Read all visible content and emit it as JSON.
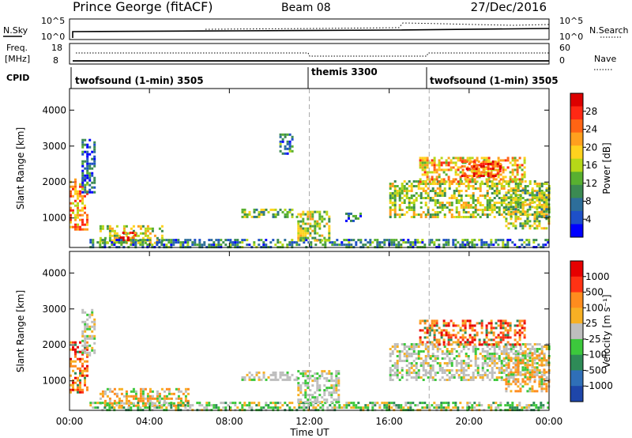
{
  "header": {
    "station": "Prince George (fitACF)",
    "beam": "Beam 08",
    "date": "27/Dec/2016"
  },
  "aux_panels": {
    "nsky_label": "N.Sky",
    "nsearch_label": "N.Search",
    "nsky_ticks": [
      "10^5",
      "10^0"
    ],
    "nsearch_ticks": [
      "10^5",
      "10^0"
    ],
    "freq_label_1": "Freq.",
    "freq_label_2": "[MHz]",
    "freq_ticks": [
      "18",
      "8"
    ],
    "nave_label": "Nave",
    "nave_ticks": [
      "60",
      "0"
    ],
    "cpid_label": "CPID",
    "cpid_segments": [
      {
        "label": "twofsound (1-min) 3505",
        "start": 0,
        "end": 12
      },
      {
        "label": "themis 3300",
        "start": 12,
        "end": 18
      },
      {
        "label": "twofsound (1-min) 3505",
        "start": 18,
        "end": 24
      }
    ]
  },
  "chart_data": [
    {
      "type": "heatmap",
      "parameter": "power",
      "ylabel": "Slant Range [km]",
      "xlabel": "Time UT",
      "xlim": [
        0,
        24
      ],
      "ylim": [
        180,
        4600
      ],
      "y_ticks": [
        "1000",
        "2000",
        "3000",
        "4000"
      ],
      "x_ticks": [
        "00:00",
        "04:00",
        "08:00",
        "12:00",
        "16:00",
        "20:00",
        "00:00"
      ],
      "colorbar": {
        "label": "Power [dB]",
        "ticks": [
          "4",
          "8",
          "12",
          "16",
          "20",
          "24",
          "28"
        ],
        "colors": [
          "#0000ff",
          "#1e50c8",
          "#2d6e9a",
          "#3b8a52",
          "#58b030",
          "#b6d818",
          "#ffd21e",
          "#ffa01e",
          "#ff6414",
          "#ff2814",
          "#dc0000"
        ]
      },
      "echo_regions": [
        {
          "t0": 0.0,
          "t1": 0.9,
          "r0": 700,
          "r1": 2100,
          "level": 0.75
        },
        {
          "t0": 0.6,
          "t1": 1.3,
          "r0": 1700,
          "r1": 3200,
          "level": 0.2
        },
        {
          "t0": 1.5,
          "t1": 4.7,
          "r0": 280,
          "r1": 800,
          "level": 0.55
        },
        {
          "t0": 2.4,
          "t1": 3.3,
          "r0": 420,
          "r1": 620,
          "level": 0.95
        },
        {
          "t0": 1.0,
          "t1": 24.0,
          "r0": 200,
          "r1": 420,
          "level": 0.3
        },
        {
          "t0": 8.6,
          "t1": 11.4,
          "r0": 1000,
          "r1": 1260,
          "level": 0.45
        },
        {
          "t0": 10.5,
          "t1": 11.2,
          "r0": 2800,
          "r1": 3350,
          "level": 0.3
        },
        {
          "t0": 11.4,
          "t1": 13.0,
          "r0": 380,
          "r1": 1200,
          "level": 0.55
        },
        {
          "t0": 13.8,
          "t1": 14.6,
          "r0": 950,
          "r1": 1150,
          "level": 0.25
        },
        {
          "t0": 16.0,
          "t1": 24.0,
          "r0": 1050,
          "r1": 2050,
          "level": 0.55
        },
        {
          "t0": 17.5,
          "t1": 22.8,
          "r0": 2000,
          "r1": 2700,
          "level": 0.7
        },
        {
          "t0": 19.6,
          "t1": 21.6,
          "r0": 2200,
          "r1": 2600,
          "level": 0.85
        },
        {
          "t0": 21.8,
          "t1": 24.0,
          "r0": 700,
          "r1": 1800,
          "level": 0.5
        }
      ]
    },
    {
      "type": "heatmap",
      "parameter": "velocity",
      "ylabel": "Slant Range [km]",
      "xlabel": "Time UT",
      "xlim": [
        0,
        24
      ],
      "ylim": [
        180,
        4600
      ],
      "y_ticks": [
        "1000",
        "2000",
        "3000",
        "4000"
      ],
      "x_ticks": [
        "00:00",
        "04:00",
        "08:00",
        "12:00",
        "16:00",
        "20:00",
        "00:00"
      ],
      "colorbar": {
        "label": "Velocity [m s⁻¹]",
        "ticks": [
          "1000",
          "500",
          "100",
          "25",
          "-25",
          "-100",
          "-500",
          "-1000"
        ],
        "colors": [
          "#1e46aa",
          "#2f6fb8",
          "#2e8b57",
          "#3cc83c",
          "#bebebe",
          "#f7b024",
          "#ff8c1e",
          "#ff3214",
          "#e60000"
        ]
      },
      "echo_regions": [
        {
          "t0": 0.0,
          "t1": 0.9,
          "r0": 700,
          "r1": 2100,
          "class": "neg-fast"
        },
        {
          "t0": 0.6,
          "t1": 1.3,
          "r0": 1700,
          "r1": 3000,
          "class": "ground"
        },
        {
          "t0": 1.5,
          "t1": 6.0,
          "r0": 280,
          "r1": 800,
          "class": "neg-slow"
        },
        {
          "t0": 1.0,
          "t1": 24.0,
          "r0": 200,
          "r1": 420,
          "class": "pos-slow"
        },
        {
          "t0": 8.6,
          "t1": 11.4,
          "r0": 1000,
          "r1": 1260,
          "class": "ground"
        },
        {
          "t0": 11.4,
          "t1": 13.5,
          "r0": 400,
          "r1": 1300,
          "class": "ground"
        },
        {
          "t0": 16.0,
          "t1": 24.0,
          "r0": 1050,
          "r1": 2050,
          "class": "ground"
        },
        {
          "t0": 17.5,
          "t1": 22.8,
          "r0": 2000,
          "r1": 2700,
          "class": "neg-fast"
        },
        {
          "t0": 21.8,
          "t1": 24.0,
          "r0": 700,
          "r1": 1800,
          "class": "neg-slow"
        }
      ]
    }
  ]
}
